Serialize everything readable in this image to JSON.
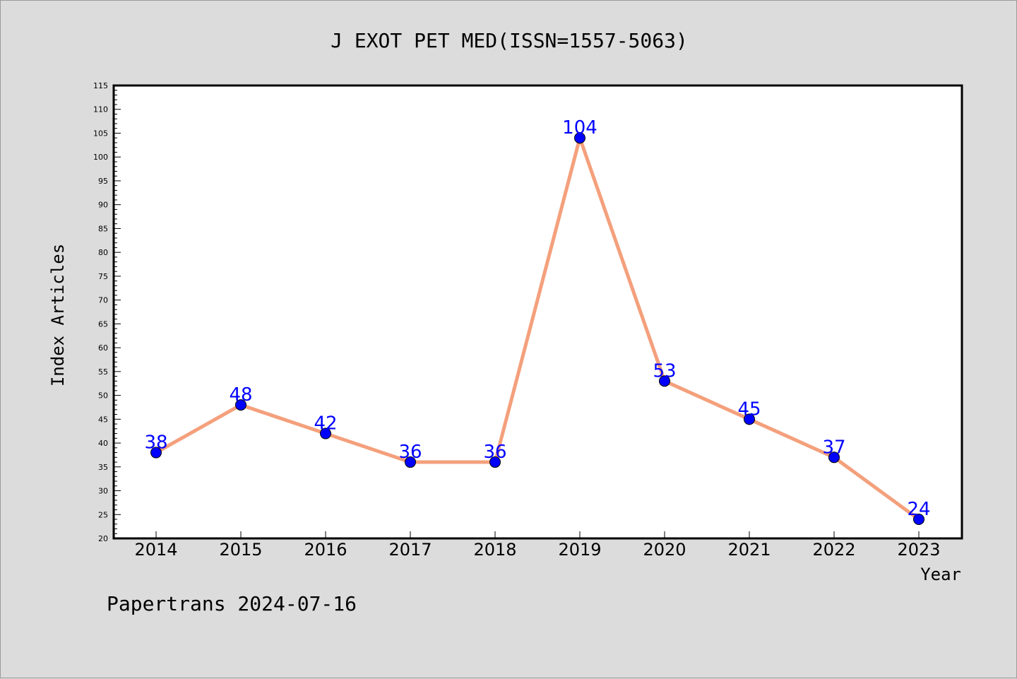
{
  "chart_data": {
    "type": "line",
    "title": "J EXOT PET MED(ISSN=1557-5063)",
    "xlabel": "Year",
    "ylabel": "Index Articles",
    "categories": [
      "2014",
      "2015",
      "2016",
      "2017",
      "2018",
      "2019",
      "2020",
      "2021",
      "2022",
      "2023"
    ],
    "series": [
      {
        "values": [
          38,
          48,
          42,
          36,
          36,
          104,
          53,
          45,
          37,
          24
        ]
      }
    ],
    "data_labels": [
      "38",
      "48",
      "42",
      "36",
      "36",
      "104",
      "53",
      "45",
      "37",
      "24"
    ],
    "ylim": [
      20,
      115
    ],
    "yticks": [
      20,
      25,
      30,
      35,
      40,
      45,
      50,
      55,
      60,
      65,
      70,
      75,
      80,
      85,
      90,
      95,
      100,
      105,
      110,
      115
    ],
    "ytick_labels": [
      "20",
      "25",
      "30",
      "35",
      "40",
      "45",
      "50",
      "55",
      "60",
      "65",
      "70",
      "75",
      "80",
      "85",
      "90",
      "95",
      "100",
      "105",
      "110",
      "115"
    ],
    "grid": false,
    "line_color": "#f4a07c",
    "marker_color": "#0000ff"
  },
  "footer": "Papertrans 2024-07-16"
}
